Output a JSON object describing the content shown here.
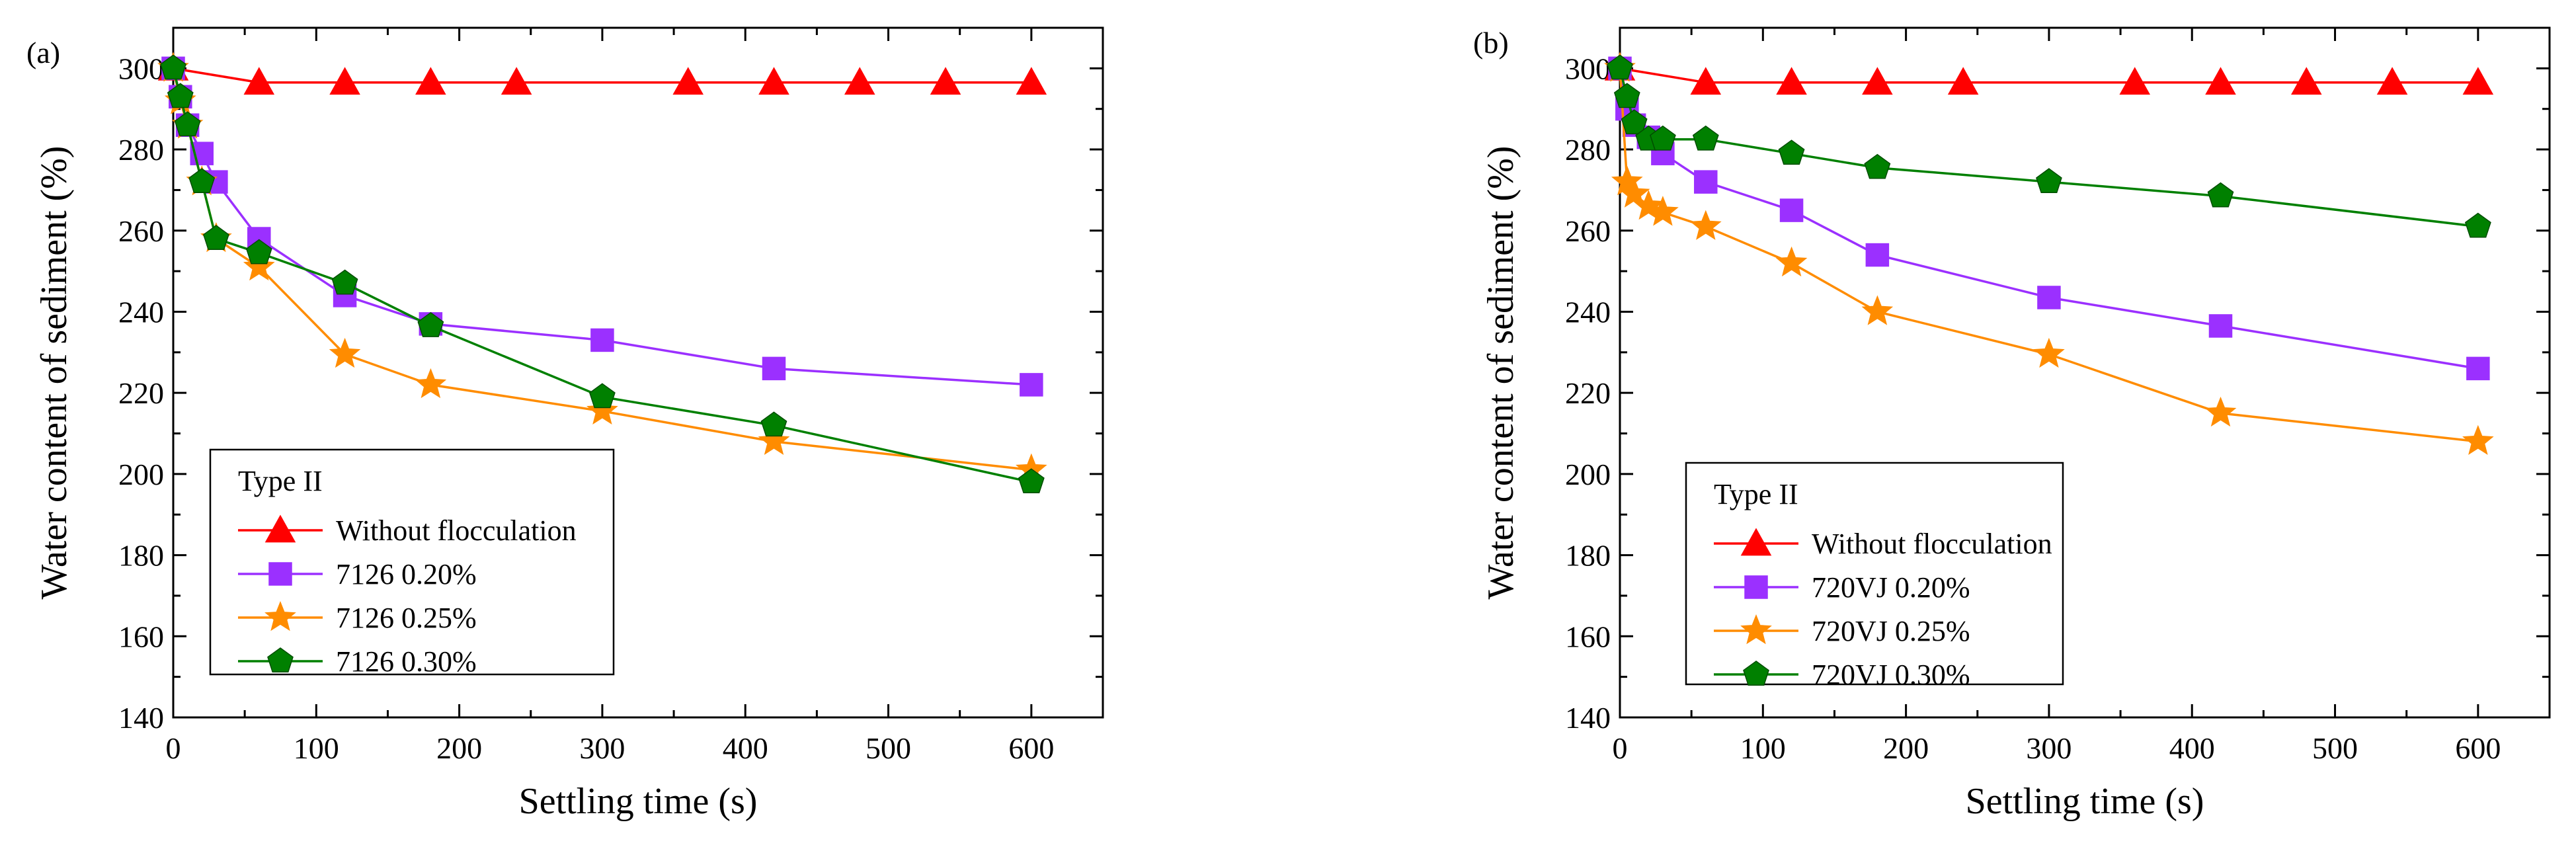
{
  "chart_data": [
    {
      "type": "line",
      "panel_label": "(a)",
      "xlabel": "Settling time (s)",
      "ylabel": "Water content of sediment (%)",
      "xlim": [
        0,
        650
      ],
      "ylim": [
        140,
        310
      ],
      "xticks": [
        0,
        100,
        200,
        300,
        400,
        500,
        600
      ],
      "yticks": [
        140,
        160,
        180,
        200,
        220,
        240,
        260,
        280,
        300
      ],
      "legend_title": "Type II",
      "legend_position": "bottom-left",
      "series": [
        {
          "name": "Without flocculation",
          "color": "#ff0000",
          "marker": "triangle",
          "x": [
            0,
            60,
            120,
            180,
            240,
            360,
            420,
            480,
            540,
            600
          ],
          "y": [
            300,
            296.5,
            296.5,
            296.5,
            296.5,
            296.5,
            296.5,
            296.5,
            296.5,
            296.5
          ]
        },
        {
          "name": "7126 0.20%",
          "color": "#9b30ff",
          "marker": "square",
          "x": [
            0,
            5,
            10,
            20,
            30,
            60,
            120,
            180,
            300,
            420,
            600
          ],
          "y": [
            300,
            293,
            286,
            279,
            272,
            258,
            244,
            237,
            233,
            226,
            222
          ]
        },
        {
          "name": "7126 0.25%",
          "color": "#ff8c00",
          "marker": "star",
          "x": [
            0,
            5,
            10,
            20,
            30,
            60,
            120,
            180,
            300,
            420,
            600
          ],
          "y": [
            300,
            292,
            286,
            272,
            258,
            251,
            229.5,
            222,
            215.5,
            208,
            201
          ]
        },
        {
          "name": "7126 0.30%",
          "color": "#008000",
          "marker": "pentagon",
          "x": [
            0,
            5,
            10,
            20,
            30,
            60,
            120,
            180,
            300,
            420,
            600
          ],
          "y": [
            300,
            293,
            286,
            272,
            258,
            254.5,
            247,
            236.5,
            219,
            212,
            198
          ]
        }
      ]
    },
    {
      "type": "line",
      "panel_label": "(b)",
      "xlabel": "Settling time (s)",
      "ylabel": "Water content of sediment (%)",
      "xlim": [
        0,
        650
      ],
      "ylim": [
        140,
        310
      ],
      "xticks": [
        0,
        100,
        200,
        300,
        400,
        500,
        600
      ],
      "yticks": [
        140,
        160,
        180,
        200,
        220,
        240,
        260,
        280,
        300
      ],
      "legend_title": "Type II",
      "legend_position": "bottom-left",
      "series": [
        {
          "name": "Without flocculation",
          "color": "#ff0000",
          "marker": "triangle",
          "x": [
            0,
            60,
            120,
            180,
            240,
            360,
            420,
            480,
            540,
            600
          ],
          "y": [
            300,
            296.5,
            296.5,
            296.5,
            296.5,
            296.5,
            296.5,
            296.5,
            296.5,
            296.5
          ]
        },
        {
          "name": "720VJ 0.20%",
          "color": "#9b30ff",
          "marker": "square",
          "x": [
            0,
            5,
            10,
            20,
            30,
            60,
            120,
            180,
            300,
            420,
            600
          ],
          "y": [
            300,
            290,
            286,
            283,
            279,
            272,
            265,
            254,
            243.5,
            236.5,
            226
          ]
        },
        {
          "name": "720VJ 0.25%",
          "color": "#ff8c00",
          "marker": "star",
          "x": [
            0,
            5,
            10,
            20,
            30,
            60,
            120,
            180,
            300,
            420,
            600
          ],
          "y": [
            300,
            272,
            269,
            266,
            264.5,
            261,
            252,
            240,
            229.5,
            215,
            208
          ]
        },
        {
          "name": "720VJ 0.30%",
          "color": "#008000",
          "marker": "pentagon",
          "x": [
            0,
            5,
            10,
            20,
            30,
            60,
            120,
            180,
            300,
            420,
            600
          ],
          "y": [
            300,
            293,
            286.5,
            282.5,
            282.5,
            282.5,
            279,
            275.5,
            272,
            268.5,
            261
          ]
        }
      ]
    }
  ]
}
